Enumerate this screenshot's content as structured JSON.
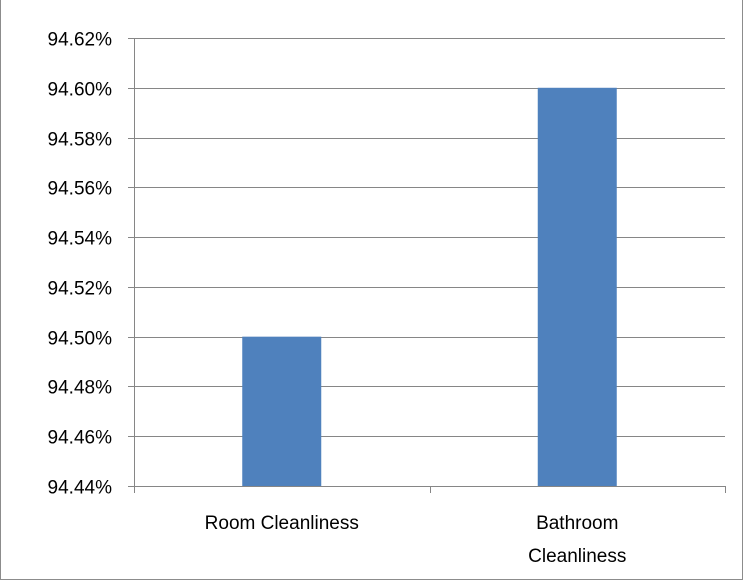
{
  "chart_data": {
    "type": "bar",
    "title": "",
    "xlabel": "",
    "ylabel": "",
    "categories": [
      "Room Cleanliness",
      "Bathroom Cleanliness"
    ],
    "category_lines": [
      [
        "Room Cleanliness"
      ],
      [
        "Bathroom",
        "Cleanliness"
      ]
    ],
    "values": [
      0.945,
      0.946
    ],
    "ylim": [
      0.9444,
      0.9462
    ],
    "yticks": [
      0.9444,
      0.9446,
      0.9448,
      0.945,
      0.9452,
      0.9454,
      0.9456,
      0.9458,
      0.946,
      0.9462
    ],
    "ytick_labels": [
      "94.44%",
      "94.46%",
      "94.48%",
      "94.50%",
      "94.52%",
      "94.54%",
      "94.56%",
      "94.58%",
      "94.60%",
      "94.62%"
    ],
    "grid": true,
    "legend": "none",
    "bar_color": "#4f81bd",
    "grid_color": "#868686"
  }
}
